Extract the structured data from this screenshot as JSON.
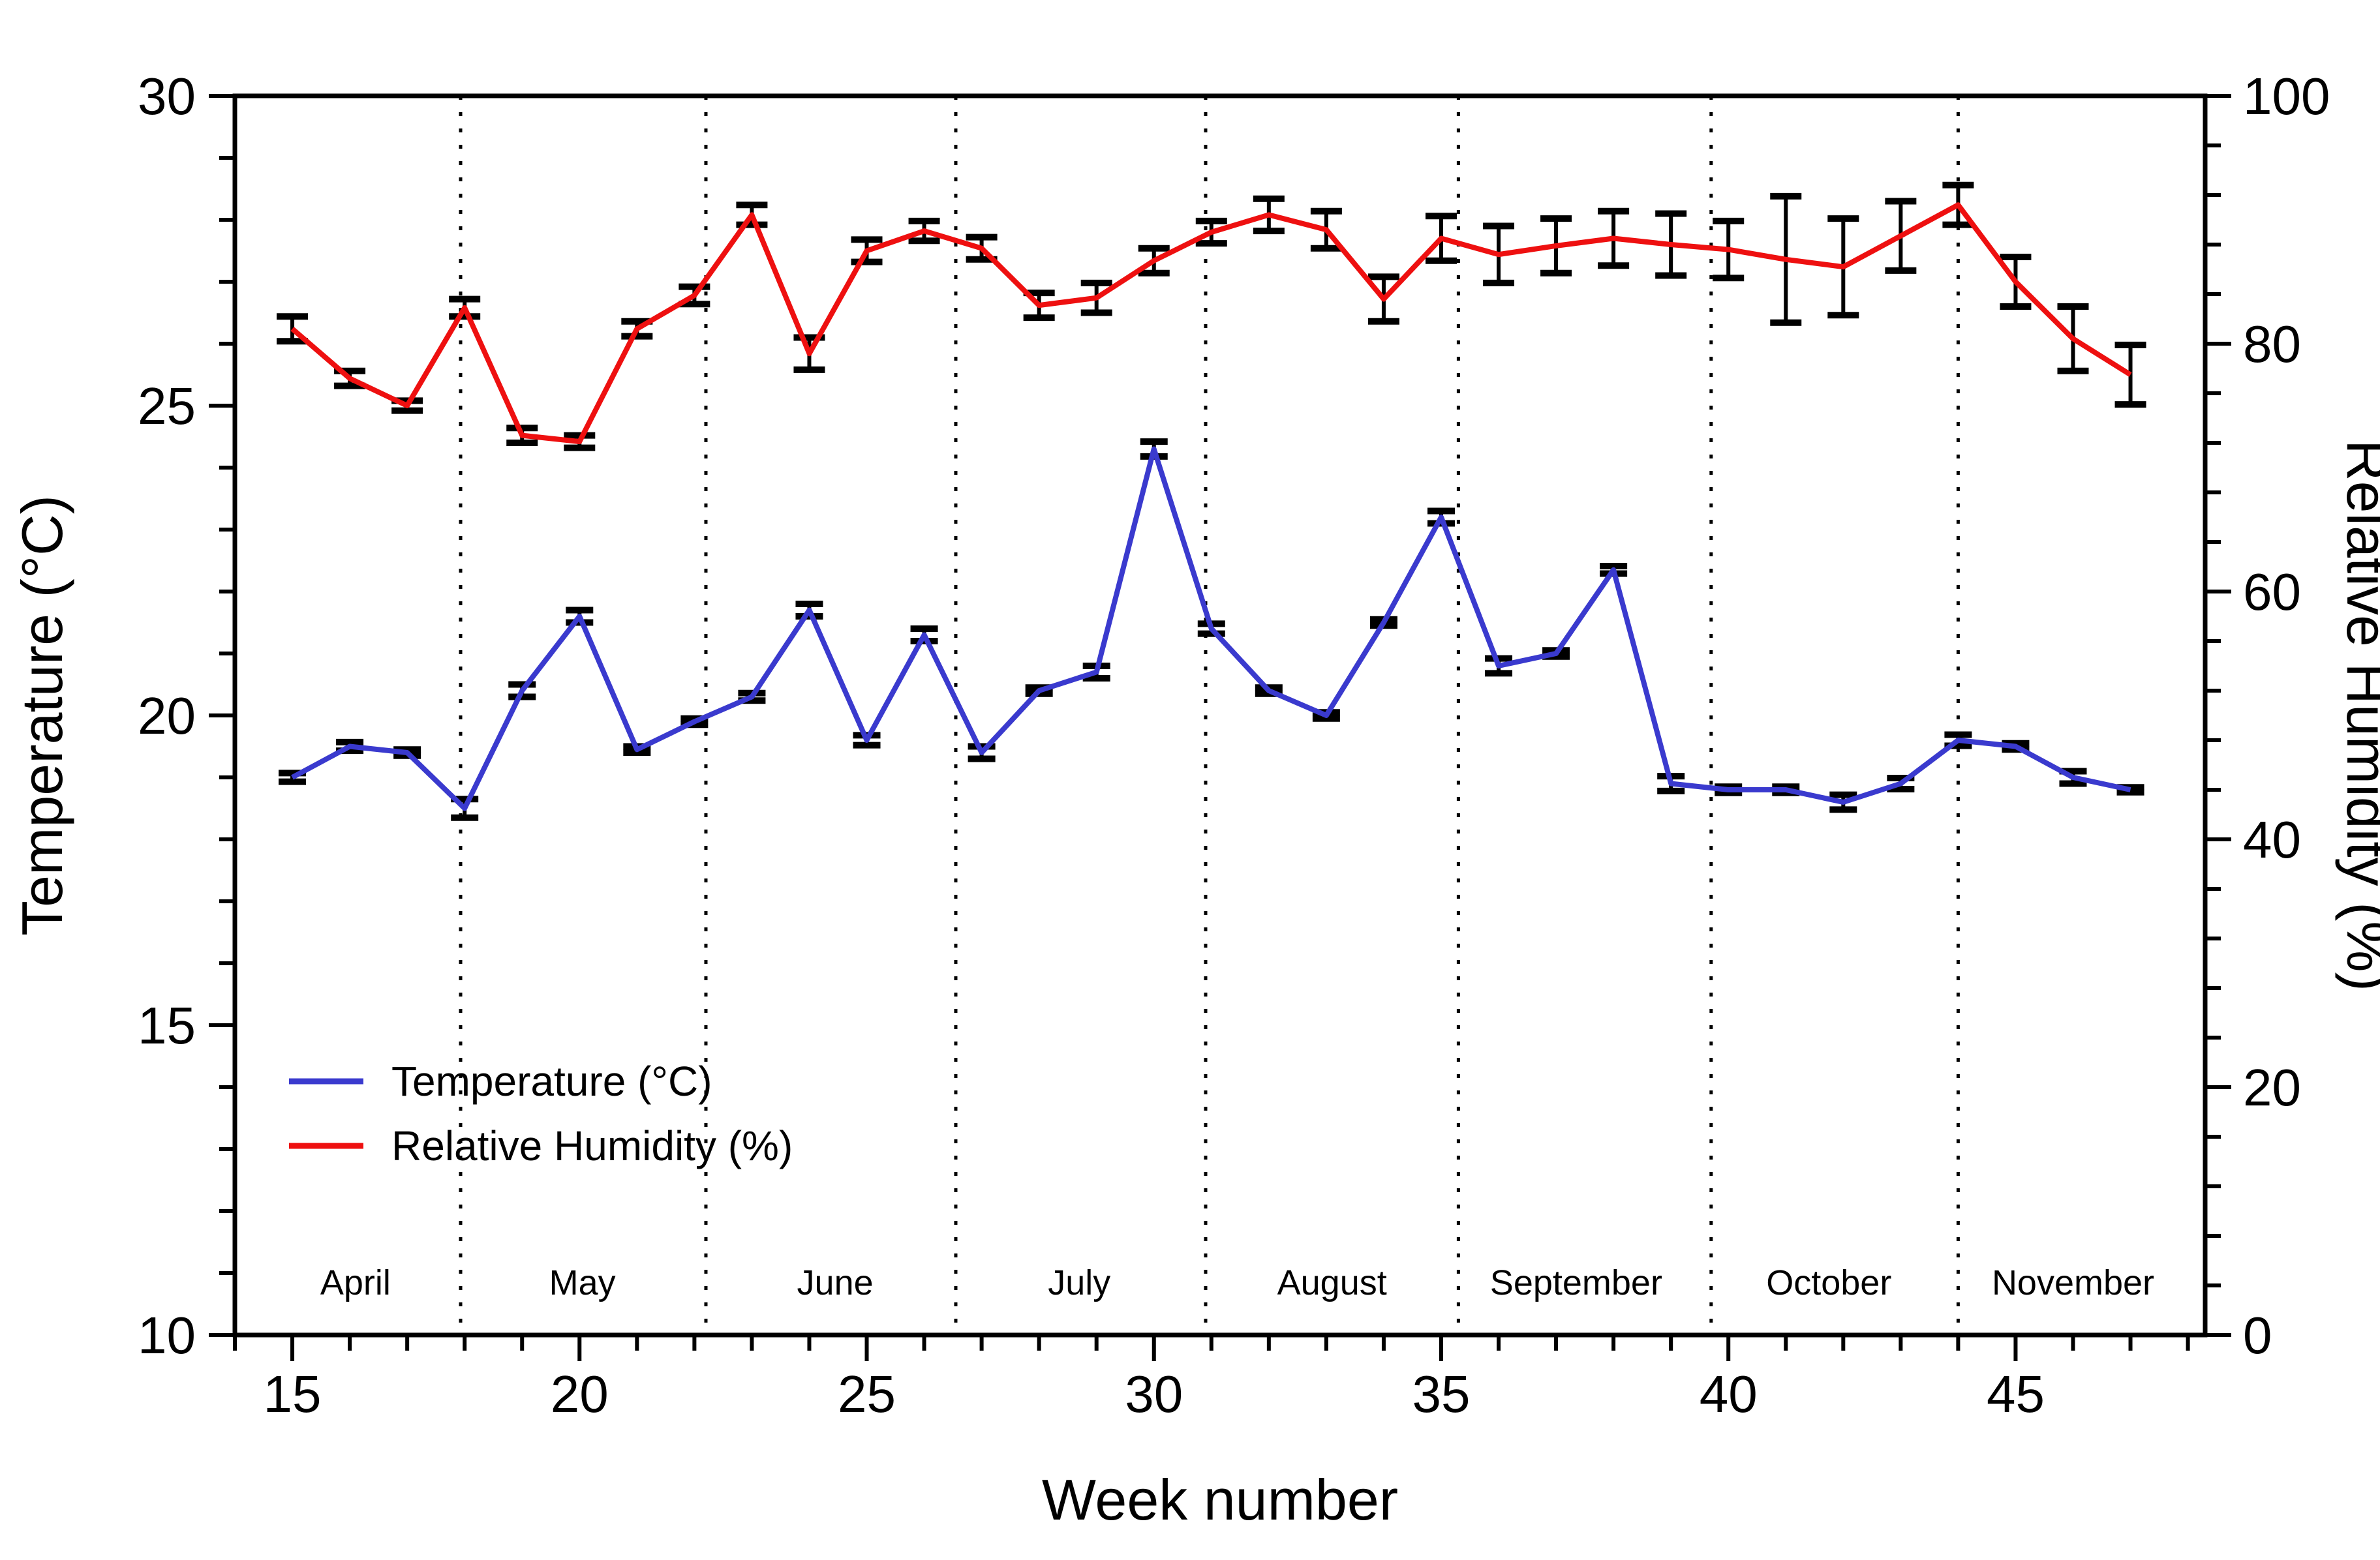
{
  "chart_data": {
    "type": "line",
    "title": "",
    "xlabel": "Week number",
    "ylabel_left": "Temperature (°C)",
    "ylabel_right": "Relative Humidity (%)",
    "x_range_weeks": [
      14,
      48.3
    ],
    "y_left_range": [
      10,
      30
    ],
    "y_right_range": [
      0,
      100
    ],
    "x_major_ticks": [
      15,
      20,
      25,
      30,
      35,
      40,
      45
    ],
    "x_minor_step": 1,
    "y_left_major_ticks": [
      10,
      15,
      20,
      25,
      30
    ],
    "y_left_minor_step": 1,
    "y_right_major_ticks": [
      0,
      20,
      40,
      60,
      80,
      100
    ],
    "y_right_minor_step": 4,
    "grid": "month-separators-dotted",
    "legend_position": "inside-lower-left",
    "weeks": [
      15,
      16,
      17,
      18,
      19,
      20,
      21,
      22,
      23,
      24,
      25,
      26,
      27,
      28,
      29,
      30,
      31,
      32,
      33,
      34,
      35,
      36,
      37,
      38,
      39,
      40,
      41,
      42,
      43,
      44,
      45,
      46,
      47
    ],
    "series": [
      {
        "name": "Temperature (°C)",
        "axis": "left",
        "color": "#3a3ace",
        "values": [
          19.0,
          19.5,
          19.4,
          18.5,
          20.4,
          21.6,
          19.45,
          19.9,
          20.3,
          21.7,
          19.6,
          21.3,
          19.4,
          20.4,
          20.7,
          24.3,
          21.4,
          20.4,
          20.0,
          21.5,
          23.2,
          20.8,
          21.0,
          22.35,
          18.9,
          18.8,
          18.8,
          18.6,
          18.9,
          19.6,
          19.5,
          19.0,
          18.8
        ],
        "errors": [
          0.07,
          0.07,
          0.05,
          0.15,
          0.1,
          0.1,
          0.05,
          0.05,
          0.06,
          0.1,
          0.08,
          0.1,
          0.1,
          0.05,
          0.1,
          0.12,
          0.08,
          0.05,
          0.05,
          0.05,
          0.1,
          0.12,
          0.05,
          0.06,
          0.12,
          0.05,
          0.05,
          0.12,
          0.09,
          0.09,
          0.05,
          0.1,
          0.04
        ]
      },
      {
        "name": "Relative Humidity (%)",
        "axis": "right",
        "color": "#ee1010",
        "values": [
          81.2,
          77.2,
          75.0,
          82.9,
          72.6,
          72.1,
          81.2,
          83.9,
          90.4,
          79.2,
          87.5,
          89.1,
          87.7,
          83.1,
          83.7,
          86.7,
          89.0,
          90.4,
          89.2,
          83.6,
          88.5,
          87.2,
          87.9,
          88.5,
          88.0,
          87.6,
          86.8,
          86.2,
          88.7,
          91.2,
          85.0,
          80.4,
          77.5
        ],
        "errors": [
          1.0,
          0.6,
          0.4,
          0.7,
          0.6,
          0.5,
          0.6,
          0.7,
          0.8,
          1.3,
          0.9,
          0.8,
          0.9,
          1.0,
          1.2,
          1.0,
          0.9,
          1.3,
          1.5,
          1.8,
          1.8,
          2.3,
          2.2,
          2.2,
          2.5,
          2.3,
          5.1,
          3.9,
          2.8,
          1.6,
          2.0,
          2.6,
          2.4
        ]
      }
    ],
    "month_boundaries_weeks": [
      17.93,
      22.2,
      26.55,
      30.9,
      35.3,
      39.7,
      44.0
    ],
    "month_labels": [
      {
        "label": "April",
        "week": 16.1
      },
      {
        "label": "May",
        "week": 20.05
      },
      {
        "label": "June",
        "week": 24.45
      },
      {
        "label": "July",
        "week": 28.7
      },
      {
        "label": "August",
        "week": 33.1
      },
      {
        "label": "September",
        "week": 37.35
      },
      {
        "label": "October",
        "week": 41.75
      },
      {
        "label": "November",
        "week": 46.0
      }
    ],
    "legend": {
      "entries": [
        {
          "label": "Temperature (°C)",
          "color": "#3a3ace"
        },
        {
          "label": "Relative Humidity (%)",
          "color": "#ee1010"
        }
      ]
    },
    "colors": {
      "frame": "#000000",
      "error_bars": "#000000",
      "background": "#ffffff"
    }
  }
}
